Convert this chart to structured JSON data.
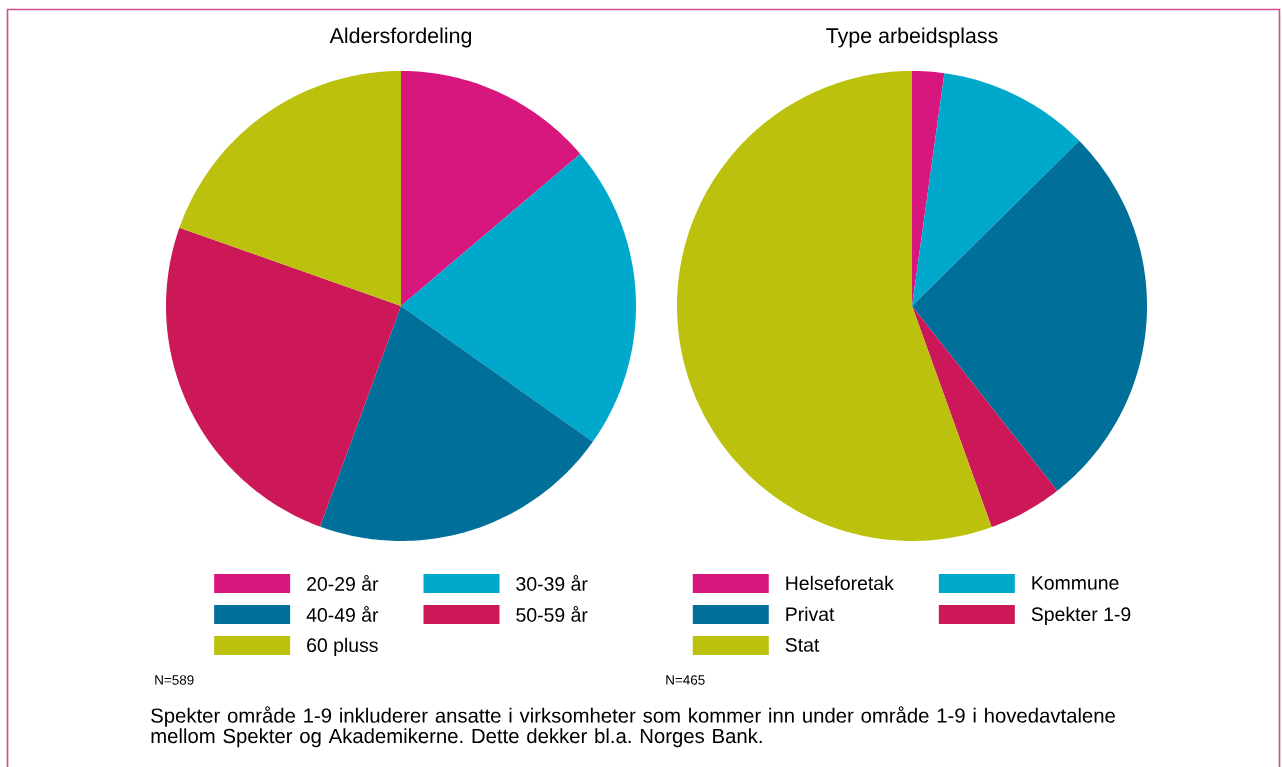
{
  "chart_data": [
    {
      "type": "pie",
      "title": "Aldersfordeling",
      "categories": [
        "20-29 år",
        "30-39 år",
        "40-49 år",
        "50-59 år",
        "60 pluss"
      ],
      "values": [
        13.8,
        21.0,
        20.8,
        24.8,
        19.6
      ],
      "colors": [
        "#d8177e",
        "#00a9cc",
        "#00709a",
        "#cc1858",
        "#bbc10c"
      ],
      "legend": "bottom",
      "annotations": [
        "N=589",
        "Spekter område 1-9 inkluderer ansatte i virksomheter som kommer inn under område 1-9 i hovedavtalene mellom Spekter og Akademikerne. Dette dekker bl.a. Norges Bank."
      ]
    },
    {
      "type": "pie",
      "title": "Type arbeidsplass",
      "categories": [
        "Helseforetak",
        "Kommune",
        "Privat",
        "Spekter 1-9",
        "Stat"
      ],
      "values": [
        2.2,
        10.4,
        26.8,
        5.1,
        55.5
      ],
      "colors": [
        "#d8177e",
        "#00a9cc",
        "#00709a",
        "#cc1858",
        "#bbc10c"
      ],
      "legend": "bottom",
      "annotations": [
        "N=465"
      ]
    }
  ]
}
